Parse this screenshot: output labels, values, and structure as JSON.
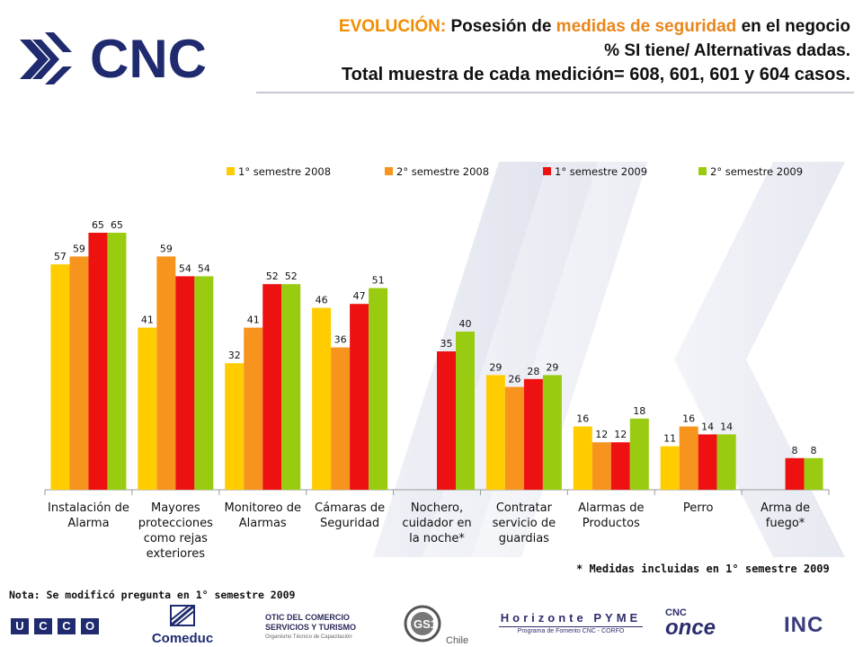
{
  "header": {
    "logo_text": "CNC",
    "title_line1_prefix": "EVOLUCIÓN:",
    "title_line1_mid": " Posesión de ",
    "title_line1_highlight": "medidas de seguridad",
    "title_line1_suffix": " en el negocio",
    "title_line2": "% SI tiene/ Alternativas dadas.",
    "title_line3": "Total muestra de cada medición= 608, 601, 601 y 604 casos."
  },
  "colors": {
    "s2008_1": "#ffcc00",
    "s2008_2": "#f7941d",
    "s2009_1": "#ee1111",
    "s2009_2": "#99cc11",
    "title_accent": "#f28c00",
    "brand_navy": "#1f2b6e"
  },
  "chart_data": {
    "type": "bar",
    "categories": [
      [
        "Instalación de",
        "Alarma"
      ],
      [
        "Mayores",
        "protecciones",
        "como rejas",
        "exteriores"
      ],
      [
        "Monitoreo de",
        "Alarmas"
      ],
      [
        "Cámaras de",
        "Seguridad"
      ],
      [
        "Nochero,",
        "cuidador en",
        "la noche*"
      ],
      [
        "Contratar",
        "servicio de",
        "guardias"
      ],
      [
        "Alarmas de",
        "Productos"
      ],
      [
        "Perro"
      ],
      [
        "Arma de",
        "fuego*"
      ]
    ],
    "series": [
      {
        "name": "1° semestre 2008",
        "color": "#ffcc00",
        "values": [
          57,
          41,
          32,
          46,
          null,
          29,
          16,
          11,
          null
        ]
      },
      {
        "name": "2° semestre 2008",
        "color": "#f7941d",
        "values": [
          59,
          59,
          41,
          36,
          null,
          26,
          12,
          16,
          null
        ]
      },
      {
        "name": "1° semestre 2009",
        "color": "#ee1111",
        "values": [
          65,
          54,
          52,
          47,
          35,
          28,
          12,
          14,
          8
        ]
      },
      {
        "name": "2° semestre 2009",
        "color": "#99cc11",
        "values": [
          65,
          54,
          52,
          51,
          40,
          29,
          18,
          14,
          8
        ]
      }
    ],
    "ylim": [
      0,
      80
    ],
    "legend_position": "top",
    "grid": false
  },
  "notes": {
    "left": "Nota: Se modificó pregunta en 1° semestre 2009",
    "right": "* Medidas incluidas en 1° semestre 2009"
  },
  "footer": {
    "ucco": [
      "U",
      "C",
      "C",
      "O"
    ],
    "comeduc": "Comeduc",
    "otic_line1": "OTIC DEL COMERCIO",
    "otic_line2": "SERVICIOS Y TURISMO",
    "otic_line3": "Organismo Técnico de Capacitación",
    "gs1": "GS1",
    "gs1_sub": "Chile",
    "horizonte": "Horizonte PYME",
    "horizonte_sub": "Programa de Fomento CNC - CORFO",
    "cnc_small": "CNC",
    "once": "once",
    "inc": "INC"
  }
}
